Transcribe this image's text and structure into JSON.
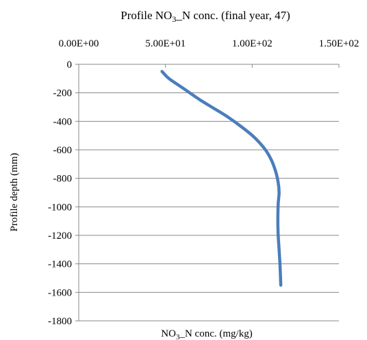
{
  "chart_data": {
    "type": "line",
    "title": {
      "before": "Profile NO",
      "sub": "3",
      "after": "_N conc.  (final year, 47)"
    },
    "xlabel": {
      "before": "NO",
      "sub": "3",
      "after": "_N conc. (mg/kg)"
    },
    "ylabel": "Profile depth (mm)",
    "x_axis_position": "top",
    "xlim": [
      0,
      150
    ],
    "ylim": [
      -1800,
      0
    ],
    "x_ticks": [
      0,
      50,
      100,
      150
    ],
    "x_tick_labels": [
      "0.00E+00",
      "5.00E+01",
      "1.00E+02",
      "1.50E+02"
    ],
    "y_ticks": [
      0,
      -200,
      -400,
      -600,
      -800,
      -1000,
      -1200,
      -1400,
      -1600,
      -1800
    ],
    "y_tick_labels": [
      "0",
      "-200",
      "-400",
      "-600",
      "-800",
      "-1000",
      "-1200",
      "-1400",
      "-1600",
      "-1800"
    ],
    "grid": "horizontal",
    "series": [
      {
        "color": "#4a7ebb",
        "x": [
          48,
          52,
          58,
          64,
          70,
          78,
          86,
          94,
          101,
          107,
          111,
          113.5,
          115,
          115.5,
          115,
          114.8,
          115,
          115.5,
          116,
          116.5
        ],
        "y": [
          -50,
          -100,
          -150,
          -200,
          -250,
          -310,
          -370,
          -440,
          -510,
          -590,
          -670,
          -750,
          -830,
          -900,
          -980,
          -1100,
          -1200,
          -1300,
          -1400,
          -1550
        ]
      }
    ]
  }
}
